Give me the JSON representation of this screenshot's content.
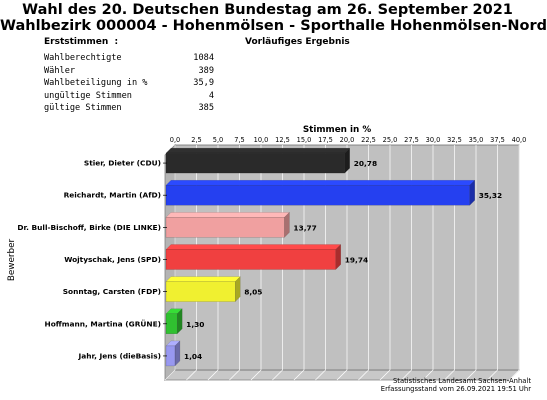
{
  "title_line1": "Wahl des 20. Deutschen Bundestag am 26. September 2021",
  "title_line2": "Wahlbezirk 000004 - Hohenmölsen - Sporthalle Hohenmölsen-Nord",
  "left_heading": "Erststimmen  :",
  "right_heading": "Vorläufiges Ergebnis",
  "stats": [
    {
      "label": "Wahlberechtigte",
      "value": "1084"
    },
    {
      "label": "Wähler",
      "value": "389"
    },
    {
      "label": "Wahlbeteiligung in %",
      "value": "35,9"
    },
    {
      "label": "ungültige Stimmen",
      "value": "4"
    },
    {
      "label": "gültige Stimmen",
      "value": "385"
    }
  ],
  "footer_line1": "Statistisches Landesamt Sachsen-Anhalt",
  "footer_line2": "Erfassungsstand vom 26.09.2021 19:51 Uhr",
  "chart_data": {
    "type": "bar",
    "orientation": "horizontal",
    "xlabel": "Stimmen in %",
    "ylabel": "Bewerber",
    "xlim": [
      0,
      40
    ],
    "x_ticks": [
      "0,0",
      "2,5",
      "5,0",
      "7,5",
      "10,0",
      "12,5",
      "15,0",
      "17,5",
      "20,0",
      "22,5",
      "25,0",
      "27,5",
      "30,0",
      "32,5",
      "35,0",
      "37,5",
      "40,0"
    ],
    "grid": true,
    "categories": [
      "Stier, Dieter (CDU)",
      "Reichardt, Martin (AfD)",
      "Dr. Bull-Bischoff, Birke (DIE LINKE)",
      "Wojtyschak, Jens (SPD)",
      "Sonntag, Carsten (FDP)",
      "Hoffmann, Martina (GRÜNE)",
      "Jahr, Jens (dieBasis)"
    ],
    "values": [
      20.78,
      35.32,
      13.77,
      19.74,
      8.05,
      1.3,
      1.04
    ],
    "value_labels": [
      "20,78",
      "35,32",
      "13,77",
      "19,74",
      "8,05",
      "1,30",
      "1,04"
    ],
    "colors": [
      "#2a2a2a",
      "#2540f0",
      "#f0a0a0",
      "#f04040",
      "#f0f030",
      "#30c030",
      "#9898f0"
    ]
  }
}
